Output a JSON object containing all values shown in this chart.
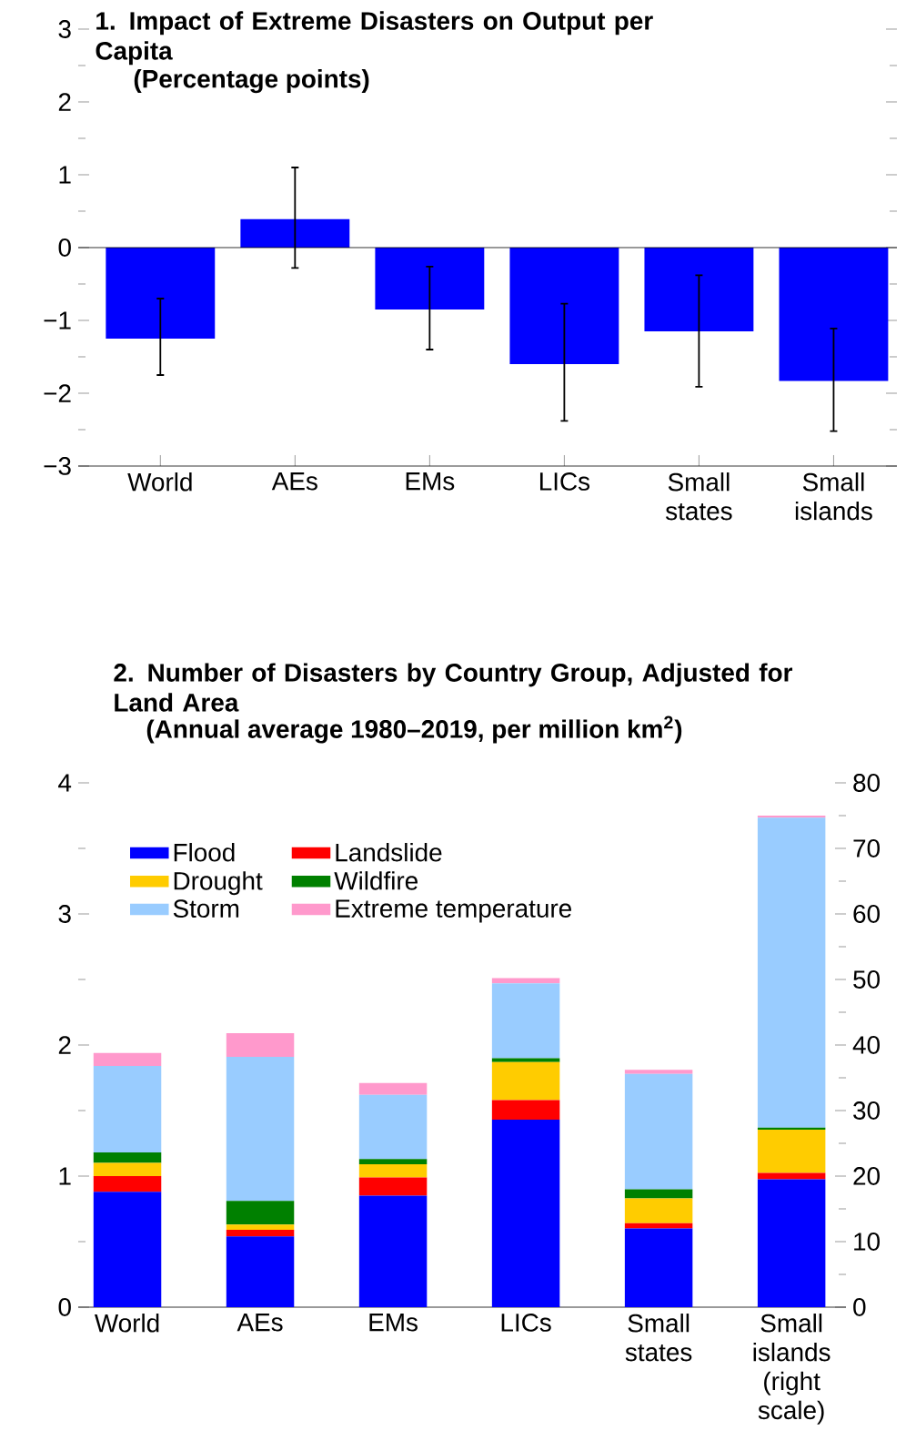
{
  "chart_data": [
    {
      "type": "bar",
      "title": "1. Impact of Extreme Disasters on Output per Capita",
      "subtitle": "(Percentage points)",
      "categories": [
        "World",
        "AEs",
        "EMs",
        "LICs",
        "Small states",
        "Small islands"
      ],
      "values": [
        -1.25,
        0.39,
        -0.85,
        -1.6,
        -1.15,
        -1.83
      ],
      "errors": [
        [
          -1.75,
          -0.7
        ],
        [
          -0.28,
          1.1
        ],
        [
          -1.4,
          -0.26
        ],
        [
          -2.38,
          -0.77
        ],
        [
          -1.91,
          -0.38
        ],
        [
          -2.52,
          -1.11
        ]
      ],
      "color": "#0000ff",
      "ylim": [
        -3,
        3
      ],
      "yticks": [
        {
          "value": -3,
          "label": "−3"
        },
        {
          "value": -2.5,
          "label": null
        },
        {
          "value": -2,
          "label": "−2"
        },
        {
          "value": -1.5,
          "label": null
        },
        {
          "value": -1,
          "label": "−1"
        },
        {
          "value": -0.5,
          "label": null
        },
        0,
        {
          "value": 0.5,
          "label": null
        },
        1,
        {
          "value": 1.5,
          "label": null
        },
        2,
        {
          "value": 2.5,
          "label": null
        },
        3
      ]
    },
    {
      "type": "bar",
      "stacked": true,
      "title": "2. Number of Disasters by Country Group, Adjusted for Land Area",
      "subtitle": "(Annual average 1980–2019, per million km$^{2}$)",
      "categories": [
        "World",
        "AEs",
        "EMs",
        "LICs",
        "Small states",
        "Small islands (right scale)"
      ],
      "legend": "top left",
      "series": [
        {
          "name": "Flood",
          "color": "#0000ff",
          "values": [
            0.88,
            0.54,
            0.85,
            1.43,
            0.6,
            null
          ]
        },
        {
          "name": "Landslide",
          "color": "#ff0000",
          "values": [
            0.12,
            0.05,
            0.14,
            0.15,
            0.04,
            null
          ]
        },
        {
          "name": "Drought",
          "color": "#ffcc00",
          "values": [
            0.1,
            0.04,
            0.1,
            0.29,
            0.19,
            null
          ]
        },
        {
          "name": "Wildfire",
          "color": "#008000",
          "values": [
            0.08,
            0.18,
            0.04,
            0.03,
            0.07,
            null
          ]
        },
        {
          "name": "Storm",
          "color": "#99ccff",
          "values": [
            0.66,
            1.1,
            0.49,
            0.57,
            0.88,
            null
          ]
        },
        {
          "name": "Extreme temperature",
          "color": "#ff99cc",
          "values": [
            0.1,
            0.18,
            0.09,
            0.04,
            0.03,
            null
          ]
        },
        {
          "color": "#0000ff",
          "axis": "y2",
          "values": [
            null,
            null,
            null,
            null,
            null,
            19.5
          ]
        },
        {
          "color": "#ff0000",
          "axis": "y2",
          "values": [
            null,
            null,
            null,
            null,
            null,
            1.0
          ]
        },
        {
          "color": "#ffcc00",
          "axis": "y2",
          "values": [
            null,
            null,
            null,
            null,
            null,
            6.6
          ]
        },
        {
          "color": "#008000",
          "axis": "y2",
          "values": [
            null,
            null,
            null,
            null,
            null,
            0.3
          ]
        },
        {
          "color": "#99ccff",
          "axis": "y2",
          "values": [
            null,
            null,
            null,
            null,
            null,
            47.3
          ]
        },
        {
          "color": "#ff99cc",
          "axis": "y2",
          "values": [
            null,
            null,
            null,
            null,
            null,
            0.3
          ]
        }
      ],
      "ylim": [
        0,
        4
      ],
      "yticks": [
        0,
        {
          "value": 0.5,
          "label": null
        },
        1,
        {
          "value": 1.5,
          "label": null
        },
        2,
        {
          "value": 2.5,
          "label": null
        },
        3,
        {
          "value": 3.5,
          "label": null
        },
        4
      ],
      "y2lim": [
        0,
        80
      ],
      "y2ticks": [
        0,
        {
          "value": 5,
          "label": null
        },
        10,
        {
          "value": 15,
          "label": null
        },
        20,
        {
          "value": 25,
          "label": null
        },
        30,
        {
          "value": 35,
          "label": null
        },
        40,
        {
          "value": 45,
          "label": null
        },
        50,
        {
          "value": 55,
          "label": null
        },
        60,
        {
          "value": 65,
          "label": null
        },
        70,
        {
          "value": 75,
          "label": null
        },
        80
      ]
    }
  ]
}
